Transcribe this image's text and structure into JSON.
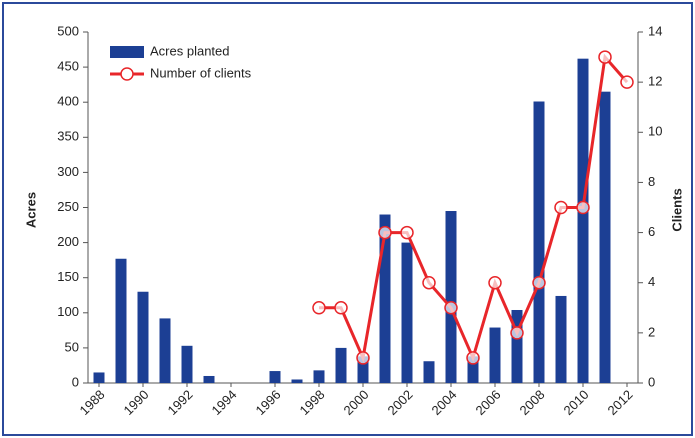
{
  "chart_data": {
    "type": "bar_line",
    "categories": [
      "1988",
      null,
      "1990",
      null,
      "1992",
      null,
      "1994",
      null,
      "1996",
      null,
      "1998",
      null,
      "2000",
      null,
      "2002",
      null,
      "2004",
      null,
      "2006",
      null,
      "2008",
      null,
      "2010",
      null,
      "2012"
    ],
    "series": [
      {
        "name": "Acres planted",
        "color": "#1c3f94",
        "type": "bar",
        "values": [
          15,
          177,
          130,
          92,
          53,
          10,
          0,
          0,
          17,
          5,
          18,
          50,
          38,
          240,
          200,
          31,
          245,
          38,
          79,
          104,
          401,
          124,
          462,
          415,
          0
        ]
      },
      {
        "name": "Number of clients",
        "color": "#e8262a",
        "type": "line",
        "axis": "y2",
        "values": [
          null,
          null,
          null,
          null,
          null,
          null,
          null,
          null,
          null,
          null,
          3,
          3,
          1,
          6,
          6,
          4,
          3,
          1,
          4,
          2,
          4,
          7,
          7,
          13,
          12
        ]
      }
    ],
    "ylabel": "Acres",
    "y2label": "Clients",
    "ylim": [
      0,
      500
    ],
    "yticks": [
      0,
      50,
      100,
      150,
      200,
      250,
      300,
      350,
      400,
      450,
      500
    ],
    "y2lim": [
      0,
      14
    ],
    "y2ticks": [
      0,
      2,
      4,
      6,
      8,
      10,
      12,
      14
    ],
    "legend": "upper left"
  }
}
